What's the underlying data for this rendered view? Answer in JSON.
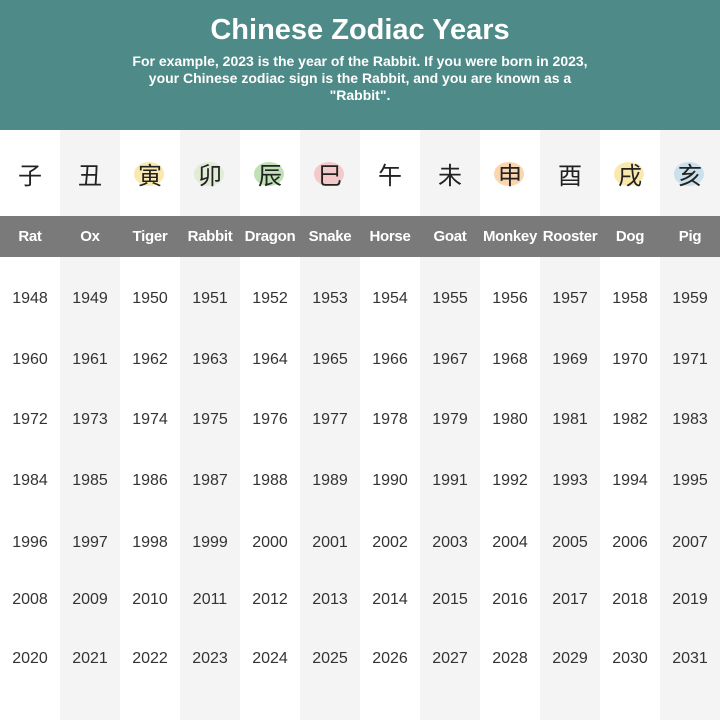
{
  "header": {
    "title": "Chinese Zodiac Years",
    "description": "For example, 2023 is the year of the Rabbit. If you were born in 2023, your Chinese zodiac sign is the Rabbit, and you are known as a \"Rabbit\"."
  },
  "table": {
    "icons": [
      "子",
      "丑",
      "寅",
      "卯",
      "辰",
      "巳",
      "午",
      "未",
      "申",
      "酉",
      "戌",
      "亥"
    ],
    "columns": [
      "Rat",
      "Ox",
      "Tiger",
      "Rabbit",
      "Dragon",
      "Snake",
      "Horse",
      "Goat",
      "Monkey",
      "Rooster",
      "Dog",
      "Pig"
    ],
    "rows": [
      [
        1948,
        1949,
        1950,
        1951,
        1952,
        1953,
        1954,
        1955,
        1956,
        1957,
        1958,
        1959
      ],
      [
        1960,
        1961,
        1962,
        1963,
        1964,
        1965,
        1966,
        1967,
        1968,
        1969,
        1970,
        1971
      ],
      [
        1972,
        1973,
        1974,
        1975,
        1976,
        1977,
        1978,
        1979,
        1980,
        1981,
        1982,
        1983
      ],
      [
        1984,
        1985,
        1986,
        1987,
        1988,
        1989,
        1990,
        1991,
        1992,
        1993,
        1994,
        1995
      ],
      [
        1996,
        1997,
        1998,
        1999,
        2000,
        2001,
        2002,
        2003,
        2004,
        2005,
        2006,
        2007
      ],
      [
        2008,
        2009,
        2010,
        2011,
        2012,
        2013,
        2014,
        2015,
        2016,
        2017,
        2018,
        2019
      ],
      [
        2020,
        2021,
        2022,
        2023,
        2024,
        2025,
        2026,
        2027,
        2028,
        2029,
        2030,
        2031
      ]
    ]
  }
}
